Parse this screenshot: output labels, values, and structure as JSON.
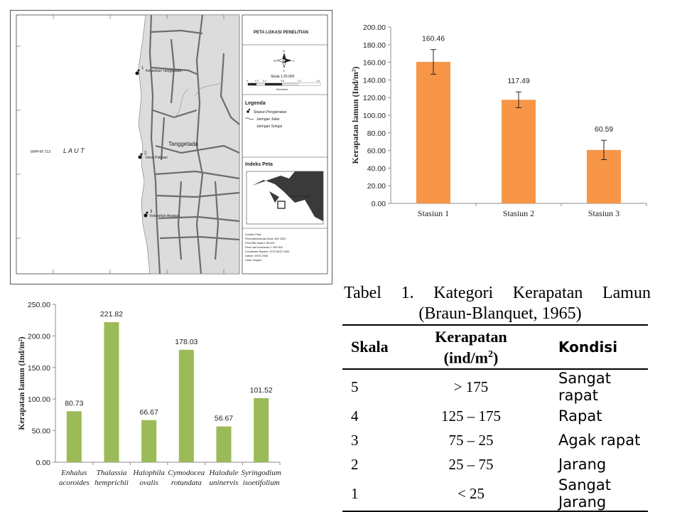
{
  "map": {
    "sea_label": "L A U T",
    "wpp_label": "WPP-RI 713",
    "town_label": "Tanggetada",
    "village_labels": [
      "Kelurahan Tanggetada",
      "Desa Palewai",
      "Kelurahan Anawua"
    ],
    "station_numbers": [
      "1",
      "2",
      "3"
    ],
    "title": "PETA LOKASI PENELITIAN",
    "scale_text": "Skala   1:25.000",
    "scale_ticks": [
      "0",
      "0.2",
      "0.4",
      "0.8",
      "1.2",
      "1.6"
    ],
    "scale_unit": "Kilometers",
    "legend_title": "Legenda",
    "legend_items": [
      "Stasiun Pengamatan",
      "Jaringan Jalan",
      "Jaringan Sungai"
    ],
    "index_title": "Indeks Peta",
    "index_label": "Sulawesi Tenggara",
    "sources": [
      "Sumber Peta:",
      "Peta Administrasi Desa, BIG 2020",
      "Peta RBI Skala 1:50.000",
      "Peta Laut Indonesia 1: 250.000",
      "Coordinate System: GCS WGS 1984",
      "Datum: WGS 1984",
      "Units: Degree"
    ],
    "compass": {
      "n": "N",
      "s": "S",
      "e": "E",
      "w": "W"
    }
  },
  "chart_data": [
    {
      "type": "bar",
      "categories": [
        "Stasiun 1",
        "Stasiun 2",
        "Stasiun 3"
      ],
      "values": [
        160.46,
        117.49,
        60.59
      ],
      "value_labels": [
        "160.46",
        "117.49",
        "60.59"
      ],
      "error": [
        14,
        9,
        11
      ],
      "ylabel": "Kerapatan lamun (Ind/m²)",
      "ylim": [
        0,
        200
      ],
      "yticks": [
        "0.00",
        "20.00",
        "40.00",
        "60.00",
        "80.00",
        "100.00",
        "120.00",
        "140.00",
        "160.00",
        "180.00",
        "200.00"
      ],
      "color": "#f79646",
      "grid": false
    },
    {
      "type": "bar",
      "categories": [
        [
          "Enhalus",
          "acoroides"
        ],
        [
          "Thalassia",
          "hemprichii"
        ],
        [
          "Halophila",
          "ovalis"
        ],
        [
          "Cymodocea",
          "rotundata"
        ],
        [
          "Halodule",
          "uninervis"
        ],
        [
          "Syringodium",
          "isoetifolium"
        ]
      ],
      "values": [
        80.73,
        221.82,
        66.67,
        178.03,
        56.67,
        101.52
      ],
      "value_labels": [
        "80.73",
        "221.82",
        "66.67",
        "178.03",
        "56.67",
        "101.52"
      ],
      "ylabel": "Kerapatan lamun (Ind/m²)",
      "ylim": [
        0,
        250
      ],
      "yticks": [
        "0.00",
        "50.00",
        "100.00",
        "150.00",
        "200.00",
        "250.00"
      ],
      "color": "#9bbb59",
      "grid": false
    }
  ],
  "table": {
    "caption_line1": [
      "Tabel",
      "1.",
      "Kategori",
      "Kerapatan",
      "Lamun"
    ],
    "caption_line2": "(Braun-Blanquet, 1965)",
    "headers": {
      "skala": "Skala",
      "kerapatan_1": "Kerapatan",
      "kerapatan_2": "(ind/m",
      "kerapatan_sup": "2",
      "kerapatan_3": ")",
      "kondisi": "Kondisi"
    },
    "rows": [
      {
        "skala": "5",
        "kerapatan": "> 175",
        "kondisi": "Sangat rapat"
      },
      {
        "skala": "4",
        "kerapatan": "125 – 175",
        "kondisi": "Rapat"
      },
      {
        "skala": "3",
        "kerapatan": "75 – 25",
        "kondisi": "Agak rapat"
      },
      {
        "skala": "2",
        "kerapatan": "25 – 75",
        "kondisi": "Jarang"
      },
      {
        "skala": "1",
        "kerapatan": "< 25",
        "kondisi": "Sangat Jarang"
      }
    ]
  }
}
